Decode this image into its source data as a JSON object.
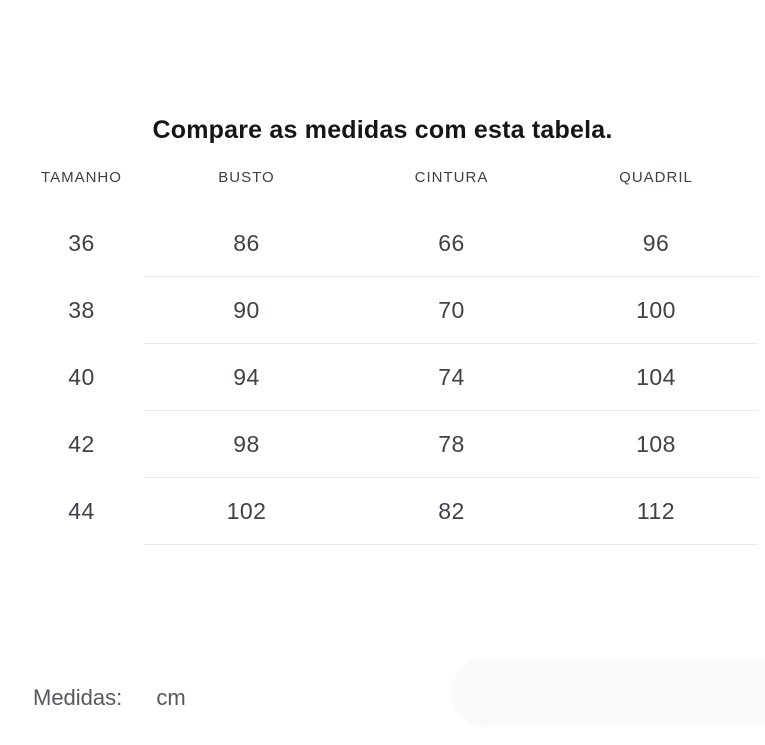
{
  "title": "Compare as medidas com esta tabela.",
  "table": {
    "columns": [
      "TAMANHO",
      "BUSTO",
      "CINTURA",
      "QUADRIL"
    ],
    "rows": [
      [
        "36",
        "86",
        "66",
        "96"
      ],
      [
        "38",
        "90",
        "70",
        "100"
      ],
      [
        "40",
        "94",
        "74",
        "104"
      ],
      [
        "42",
        "98",
        "78",
        "108"
      ],
      [
        "44",
        "102",
        "82",
        "112"
      ]
    ]
  },
  "footer": {
    "label": "Medidas:",
    "value": "cm"
  },
  "colors": {
    "background": "#ffffff",
    "title_text": "#151515",
    "header_text": "#3d4045",
    "cell_text": "#3f4247",
    "divider": "#ebebeb",
    "footer_text": "#55585c",
    "pill_fill": "#fafafa"
  }
}
